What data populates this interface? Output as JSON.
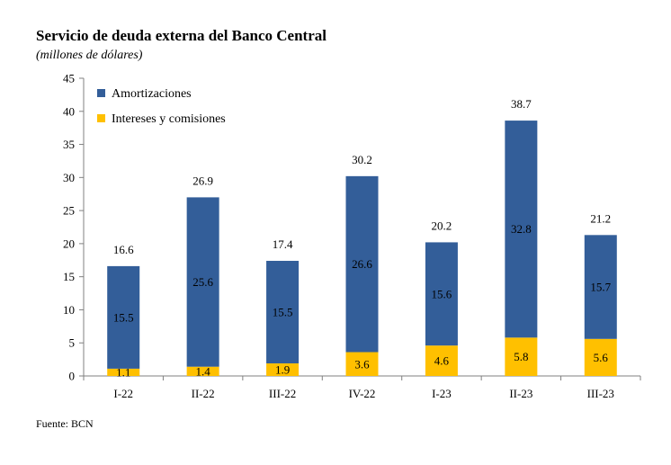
{
  "title": "Servicio de deuda externa del Banco Central",
  "subtitle": "(millones de dólares)",
  "source": "Fuente: BCN",
  "chart_data": {
    "type": "bar",
    "stacked": true,
    "categories": [
      "I-22",
      "II-22",
      "III-22",
      "IV-22",
      "I-23",
      "II-23",
      "III-23"
    ],
    "series": [
      {
        "name": "Intereses y comisiones",
        "color": "#FFC000",
        "values": [
          1.1,
          1.4,
          1.9,
          3.6,
          4.6,
          5.8,
          5.6
        ]
      },
      {
        "name": "Amortizaciones",
        "color": "#335E99",
        "values": [
          15.5,
          25.6,
          15.5,
          26.6,
          15.6,
          32.8,
          15.7
        ]
      }
    ],
    "totals": [
      16.6,
      26.9,
      17.4,
      30.2,
      20.2,
      38.7,
      21.2
    ],
    "ylim": [
      0,
      45
    ],
    "yticks": [
      0,
      5,
      10,
      15,
      20,
      25,
      30,
      35,
      40,
      45
    ],
    "legend_position": "top-left",
    "grid": false
  }
}
